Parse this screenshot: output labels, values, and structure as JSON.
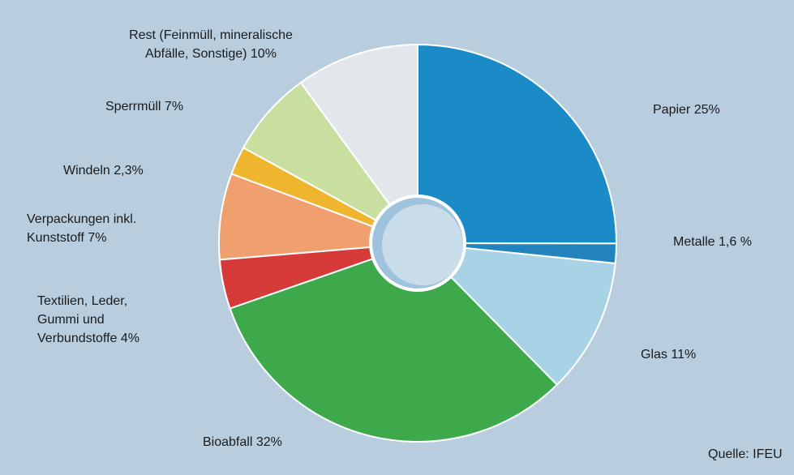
{
  "chart_data": {
    "type": "pie",
    "categories": [
      "Papier",
      "Metalle",
      "Glas",
      "Bioabfall",
      "Textilien, Leder, Gummi und Verbundstoffe",
      "Verpackungen inkl. Kunststoff",
      "Windeln",
      "Sperrmüll",
      "Rest (Feinmüll, mineralische Abfälle, Sonstige)"
    ],
    "values": [
      25,
      1.6,
      11,
      32,
      4,
      7,
      2.3,
      7,
      10
    ],
    "value_labels": [
      "25%",
      "1,6 %",
      "11%",
      "32%",
      "4%",
      "7%",
      "2,3%",
      "7%",
      "10%"
    ],
    "colors": [
      "#1b8bc7",
      "#2383bd",
      "#a8d2e6",
      "#3da94a",
      "#d63b3a",
      "#f0a06e",
      "#efb52f",
      "#c8dfa0",
      "#e1e7eb"
    ],
    "source": "Quelle: IFEU"
  }
}
